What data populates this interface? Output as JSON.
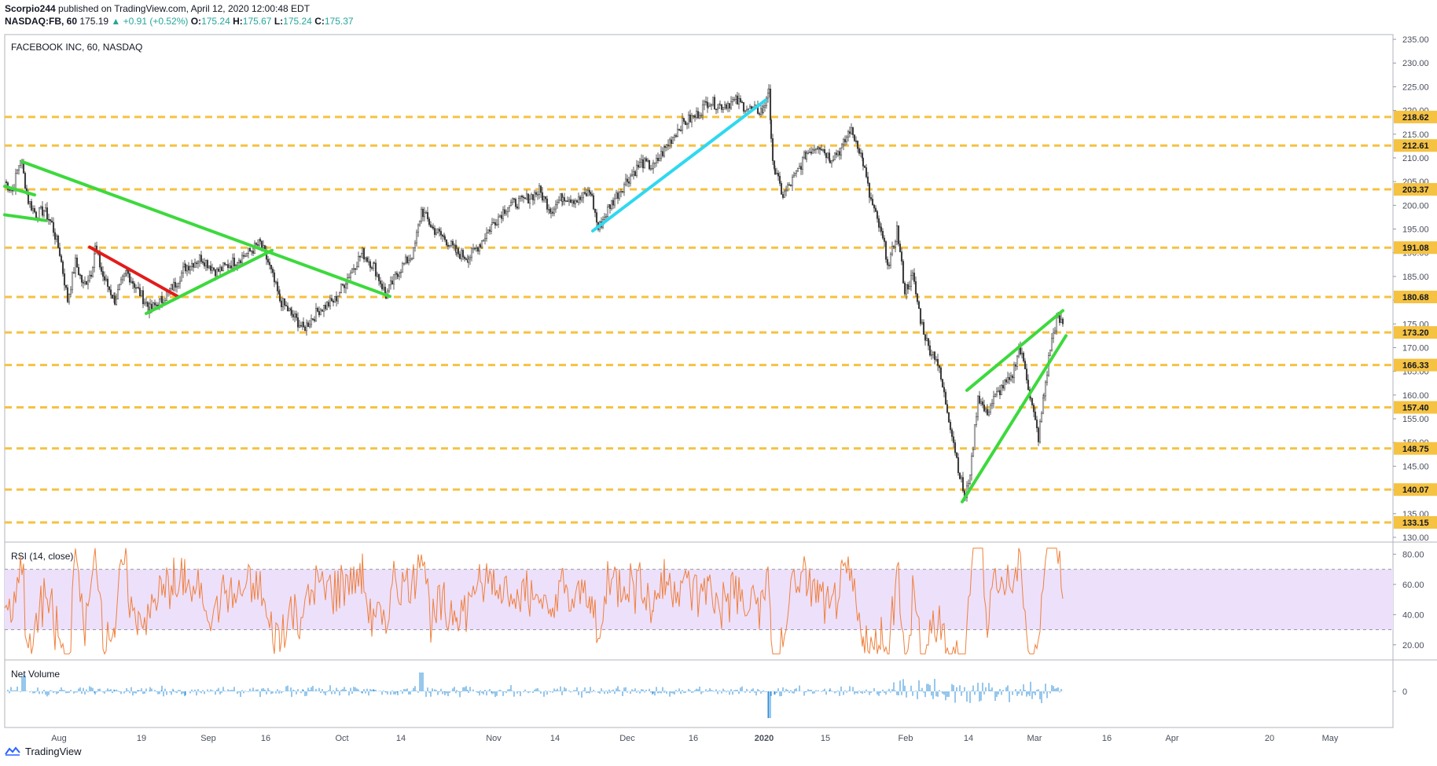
{
  "header": {
    "author": "Scorpio244",
    "published_text": "published on TradingView.com, April 12, 2020 12:00:48 EDT",
    "symbol": "NASDAQ:FB, 60",
    "last": "175.19",
    "change_arrow": "▲",
    "change": "+0.91 (+0.52%)",
    "o_label": "O:",
    "o_value": "175.24",
    "h_label": "H:",
    "h_value": "175.67",
    "l_label": "L:",
    "l_value": "175.24",
    "c_label": "C:",
    "c_value": "175.37"
  },
  "footer": {
    "brand": "TradingView",
    "brand_icon": "tradingview-logo-icon"
  },
  "colors": {
    "up": "#26a69a",
    "level_line": "#f5c242",
    "level_box": "#f5c242",
    "trend_green": "#3dd93d",
    "trend_red": "#e31b1b",
    "trend_cyan": "#2fd8f0",
    "rsi_line": "#f0803c",
    "rsi_band": "#ede0fb",
    "volume": "#2e8fd8"
  },
  "chart_data": [
    {
      "type": "candlestick",
      "title": "FACEBOOK INC, 60, NASDAQ",
      "y_ticks": [
        "235.00",
        "230.00",
        "225.00",
        "220.00",
        "215.00",
        "210.00",
        "205.00",
        "200.00",
        "195.00",
        "190.00",
        "185.00",
        "180.00",
        "175.00",
        "170.00",
        "165.00",
        "160.00",
        "155.00",
        "150.00",
        "145.00",
        "140.00",
        "135.00",
        "130.00"
      ],
      "ylim": [
        129,
        236
      ],
      "x_ticks": [
        "Aug",
        "19",
        "Sep",
        "16",
        "Oct",
        "14",
        "Nov",
        "14",
        "Dec",
        "16",
        "2020",
        "15",
        "Feb",
        "14",
        "Mar",
        "16",
        "Apr",
        "20",
        "May"
      ],
      "price_path": [
        [
          0,
          205
        ],
        [
          10,
          203
        ],
        [
          20,
          210
        ],
        [
          30,
          201
        ],
        [
          40,
          198
        ],
        [
          50,
          199
        ],
        [
          60,
          196
        ],
        [
          70,
          190
        ],
        [
          80,
          180
        ],
        [
          90,
          188
        ],
        [
          100,
          183
        ],
        [
          110,
          186
        ],
        [
          115,
          191
        ],
        [
          125,
          185
        ],
        [
          140,
          180
        ],
        [
          155,
          186
        ],
        [
          170,
          182
        ],
        [
          185,
          178
        ],
        [
          200,
          180
        ],
        [
          215,
          183
        ],
        [
          230,
          187
        ],
        [
          250,
          189
        ],
        [
          270,
          186
        ],
        [
          290,
          188
        ],
        [
          310,
          190
        ],
        [
          325,
          192
        ],
        [
          335,
          188
        ],
        [
          350,
          180
        ],
        [
          365,
          177
        ],
        [
          380,
          174
        ],
        [
          400,
          178
        ],
        [
          420,
          180
        ],
        [
          440,
          186
        ],
        [
          455,
          190
        ],
        [
          470,
          187
        ],
        [
          485,
          181
        ],
        [
          500,
          186
        ],
        [
          520,
          190
        ],
        [
          530,
          199
        ],
        [
          545,
          195
        ],
        [
          560,
          193
        ],
        [
          575,
          190
        ],
        [
          590,
          189
        ],
        [
          605,
          192
        ],
        [
          620,
          196
        ],
        [
          640,
          200
        ],
        [
          660,
          201
        ],
        [
          680,
          203
        ],
        [
          695,
          199
        ],
        [
          710,
          202
        ],
        [
          730,
          201
        ],
        [
          745,
          203
        ],
        [
          755,
          195
        ],
        [
          770,
          200
        ],
        [
          790,
          205
        ],
        [
          810,
          209
        ],
        [
          825,
          208
        ],
        [
          840,
          212
        ],
        [
          860,
          217
        ],
        [
          880,
          219
        ],
        [
          895,
          222
        ],
        [
          910,
          221
        ],
        [
          930,
          222
        ],
        [
          950,
          220
        ],
        [
          965,
          220
        ],
        [
          972,
          225
        ],
        [
          975,
          213
        ],
        [
          980,
          207
        ],
        [
          990,
          202
        ],
        [
          1005,
          206
        ],
        [
          1020,
          211
        ],
        [
          1035,
          213
        ],
        [
          1050,
          210
        ],
        [
          1065,
          212
        ],
        [
          1075,
          216
        ],
        [
          1085,
          213
        ],
        [
          1092,
          209
        ],
        [
          1100,
          202
        ],
        [
          1115,
          194
        ],
        [
          1125,
          187
        ],
        [
          1135,
          195
        ],
        [
          1145,
          182
        ],
        [
          1155,
          185
        ],
        [
          1165,
          176
        ],
        [
          1175,
          170
        ],
        [
          1185,
          168
        ],
        [
          1195,
          160
        ],
        [
          1205,
          152
        ],
        [
          1215,
          143
        ],
        [
          1222,
          138
        ],
        [
          1230,
          146
        ],
        [
          1238,
          160
        ],
        [
          1248,
          156
        ],
        [
          1258,
          159
        ],
        [
          1270,
          162
        ],
        [
          1280,
          163
        ],
        [
          1290,
          170
        ],
        [
          1298,
          166
        ],
        [
          1305,
          159
        ],
        [
          1315,
          151
        ],
        [
          1322,
          160
        ],
        [
          1330,
          170
        ],
        [
          1338,
          176
        ],
        [
          1346,
          175
        ]
      ],
      "levels": [
        {
          "label": "218.62",
          "value": 218.62
        },
        {
          "label": "212.61",
          "value": 212.61
        },
        {
          "label": "203.37",
          "value": 203.37
        },
        {
          "label": "191.08",
          "value": 191.08
        },
        {
          "label": "180.68",
          "value": 180.68
        },
        {
          "label": "173.20",
          "value": 173.2
        },
        {
          "label": "166.33",
          "value": 166.33
        },
        {
          "label": "157.40",
          "value": 157.4
        },
        {
          "label": "148.75",
          "value": 148.75
        },
        {
          "label": "140.07",
          "value": 140.07
        },
        {
          "label": "133.15",
          "value": 133.15
        }
      ]
    },
    {
      "type": "line",
      "title": "RSI (14, close)",
      "ylim": [
        10,
        88
      ],
      "y_ticks": [
        "80.00",
        "60.00",
        "40.00",
        "20.00"
      ],
      "band": [
        30,
        70
      ]
    },
    {
      "type": "bar",
      "title": "Net Volume",
      "y_ticks": [
        "0"
      ]
    }
  ]
}
